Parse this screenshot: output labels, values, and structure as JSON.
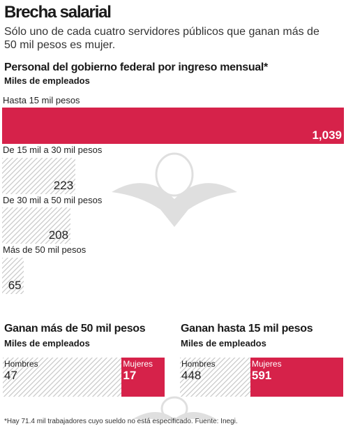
{
  "header": {
    "title": "Brecha salarial",
    "subtitle": "Sólo uno de cada cuatro servidores públicos que ganan más de 50 mil pesos es mujer."
  },
  "colors": {
    "accent": "#d6224a",
    "hatch": "#cfcfcf"
  },
  "watermark": {
    "icon": "eagle-emblem-icon"
  },
  "chart_data": [
    {
      "type": "bar",
      "orientation": "horizontal",
      "title": "Personal del gobierno federal por ingreso mensual*",
      "subtitle": "Miles de empleados",
      "categories": [
        "Hasta 15 mil pesos",
        "De 15 mil a 30 mil pesos",
        "De 30 mil a 50 mil pesos",
        "Más de 50 mil pesos"
      ],
      "values": [
        1039,
        223,
        208,
        65
      ],
      "value_labels": [
        "1,039",
        "223",
        "208",
        "65"
      ],
      "highlight": [
        true,
        false,
        false,
        false
      ],
      "xlim": [
        0,
        1039
      ],
      "grid": false
    },
    {
      "type": "bar",
      "orientation": "horizontal-stacked",
      "title": "Ganan más de 50 mil pesos",
      "subtitle": "Miles de empleados",
      "series": [
        {
          "name": "Hombres",
          "values": [
            47
          ],
          "label": "47"
        },
        {
          "name": "Mujeres",
          "values": [
            17
          ],
          "label": "17"
        }
      ]
    },
    {
      "type": "bar",
      "orientation": "horizontal-stacked",
      "title": "Ganan hasta 15 mil pesos",
      "subtitle": "Miles de empleados",
      "series": [
        {
          "name": "Hombres",
          "values": [
            448
          ],
          "label": "448"
        },
        {
          "name": "Mujeres",
          "values": [
            591
          ],
          "label": "591"
        }
      ]
    }
  ],
  "footnote": "*Hay 71.4 mil trabajadores cuyo sueldo no está especificado. Fuente: Inegi."
}
